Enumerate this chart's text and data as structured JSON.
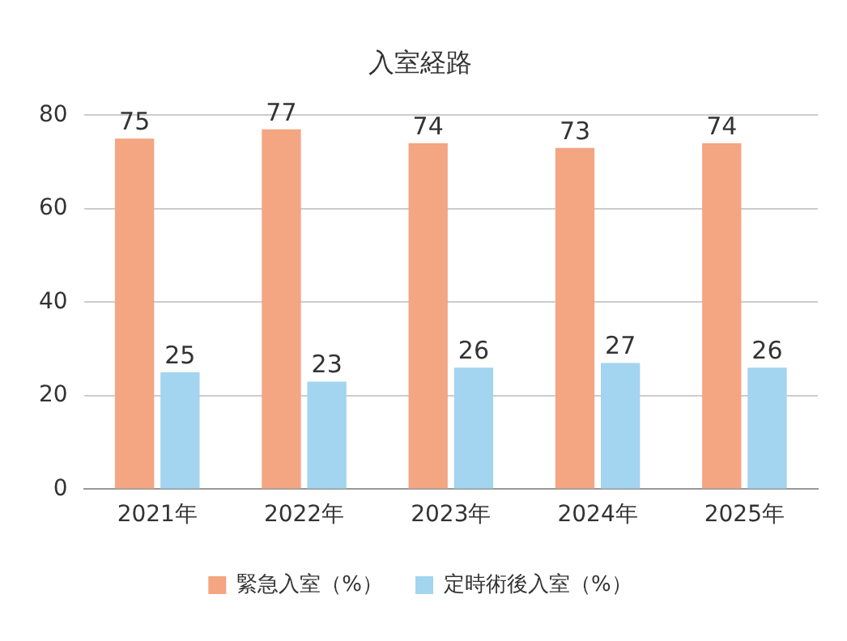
{
  "chart_data": {
    "type": "bar",
    "title": "入室経路",
    "categories": [
      "2021年",
      "2022年",
      "2023年",
      "2024年",
      "2025年"
    ],
    "series": [
      {
        "name": "緊急入室（%）",
        "color": "#f4a582",
        "values": [
          75,
          77,
          74,
          73,
          74
        ]
      },
      {
        "name": "定時術後入室（%）",
        "color": "#a3d4f0",
        "values": [
          25,
          23,
          26,
          27,
          26
        ]
      }
    ],
    "ylim": [
      0,
      80
    ],
    "yticks": [
      0,
      20,
      40,
      60,
      80
    ],
    "grid": "y",
    "legend": "bottom",
    "data_labels": true
  }
}
